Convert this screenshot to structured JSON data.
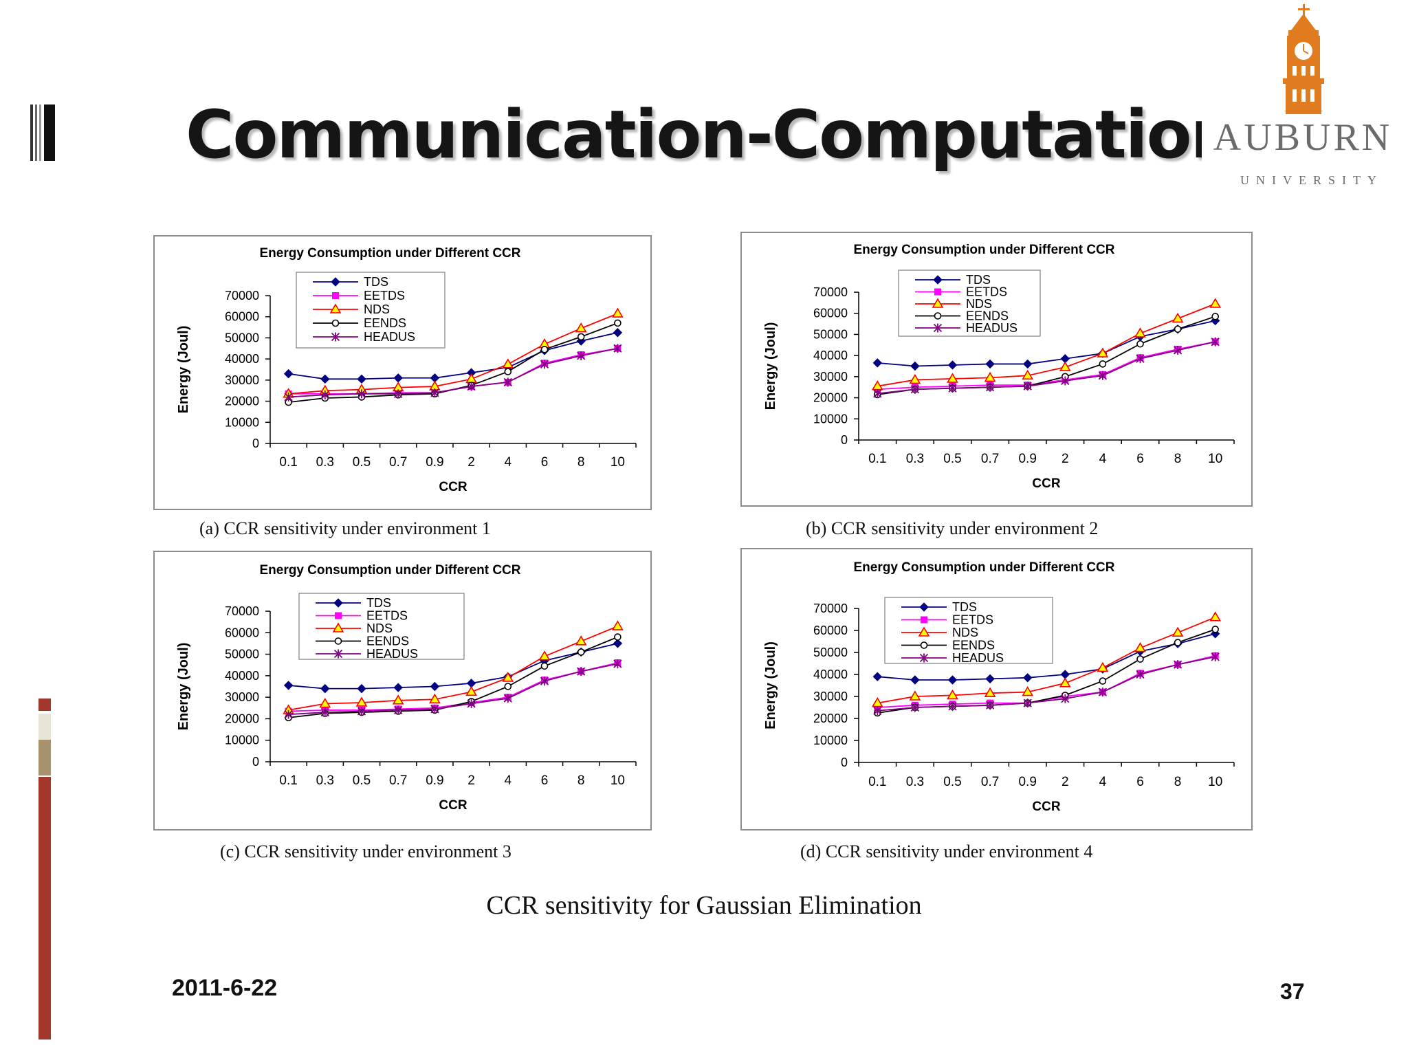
{
  "slide": {
    "title": "Communication-Computation Ratio",
    "logo": {
      "name": "AUBURN",
      "subtitle": "UNIVERSITY",
      "color": "#e07b20"
    },
    "figure_caption": "CCR sensitivity for Gaussian Elimination",
    "date": "2011-6-22",
    "page_number": "37",
    "side_bar_colors": [
      "#a3362a",
      "#e8e4d6",
      "#a8926e",
      "#a3362a"
    ]
  },
  "series_styles": [
    {
      "name": "TDS",
      "color": "#000080",
      "marker": "diamond"
    },
    {
      "name": "EETDS",
      "color": "#ff00ff",
      "marker": "square"
    },
    {
      "name": "NDS",
      "color": "#ff0000",
      "marker": "triangle"
    },
    {
      "name": "EENDS",
      "color": "#000000",
      "marker": "circle"
    },
    {
      "name": "HEADUS",
      "color": "#800080",
      "marker": "star"
    }
  ],
  "chart_data": [
    {
      "type": "line",
      "title": "Energy Consumption under Different CCR",
      "subcaption_label": "(a)",
      "subcaption_text": "CCR sensitivity under environment 1",
      "xlabel": "CCR",
      "ylabel": "Energy (Joul)",
      "categories": [
        "0.1",
        "0.3",
        "0.5",
        "0.7",
        "0.9",
        "2",
        "4",
        "6",
        "8",
        "10"
      ],
      "yticks": [
        "0",
        "10000",
        "20000",
        "30000",
        "40000",
        "50000",
        "60000",
        "70000"
      ],
      "ylim": [
        0,
        70000
      ],
      "legend": "top-left",
      "grid": false,
      "series": [
        {
          "name": "TDS",
          "values": [
            33000,
            30500,
            30500,
            31000,
            31000,
            33500,
            36000,
            44000,
            48500,
            52500
          ]
        },
        {
          "name": "EETDS",
          "values": [
            23500,
            23500,
            23500,
            24000,
            24000,
            27000,
            29000,
            38000,
            42000,
            45000
          ]
        },
        {
          "name": "NDS",
          "values": [
            23500,
            25000,
            25500,
            26500,
            27000,
            30500,
            37500,
            47000,
            54500,
            61500
          ]
        },
        {
          "name": "EENDS",
          "values": [
            19500,
            21500,
            22000,
            23000,
            23500,
            27500,
            34000,
            44500,
            50500,
            57000
          ]
        },
        {
          "name": "HEADUS",
          "values": [
            22000,
            23000,
            23500,
            23500,
            24000,
            27000,
            29000,
            37500,
            41500,
            45000
          ]
        }
      ]
    },
    {
      "type": "line",
      "title": "Energy Consumption under Different CCR",
      "subcaption_label": "(b)",
      "subcaption_text": "CCR sensitivity under environment 2",
      "xlabel": "CCR",
      "ylabel": "Energy (Joul)",
      "categories": [
        "0.1",
        "0.3",
        "0.5",
        "0.7",
        "0.9",
        "2",
        "4",
        "6",
        "8",
        "10"
      ],
      "yticks": [
        "0",
        "10000",
        "20000",
        "30000",
        "40000",
        "50000",
        "60000",
        "70000"
      ],
      "ylim": [
        0,
        70000
      ],
      "legend": "top-left",
      "grid": false,
      "series": [
        {
          "name": "TDS",
          "values": [
            36500,
            35000,
            35500,
            36000,
            36000,
            38500,
            41000,
            49000,
            52500,
            56500
          ]
        },
        {
          "name": "EETDS",
          "values": [
            24000,
            25000,
            25500,
            26000,
            26000,
            28500,
            31000,
            39000,
            43000,
            46500
          ]
        },
        {
          "name": "NDS",
          "values": [
            25500,
            28500,
            29000,
            29500,
            30500,
            34500,
            41000,
            50500,
            57500,
            64500
          ]
        },
        {
          "name": "EENDS",
          "values": [
            21500,
            24000,
            24500,
            25000,
            25500,
            30000,
            36000,
            45500,
            52500,
            58500
          ]
        },
        {
          "name": "HEADUS",
          "values": [
            22000,
            24000,
            24500,
            25000,
            25500,
            28000,
            30500,
            38500,
            42500,
            46500
          ]
        }
      ]
    },
    {
      "type": "line",
      "title": "Energy Consumption under Different CCR",
      "subcaption_label": "(c)",
      "subcaption_text": "CCR sensitivity under environment 3",
      "xlabel": "CCR",
      "ylabel": "Energy (Joul)",
      "categories": [
        "0.1",
        "0.3",
        "0.5",
        "0.7",
        "0.9",
        "2",
        "4",
        "6",
        "8",
        "10"
      ],
      "yticks": [
        "0",
        "10000",
        "20000",
        "30000",
        "40000",
        "50000",
        "60000",
        "70000"
      ],
      "ylim": [
        0,
        70000
      ],
      "legend": "top-left",
      "grid": false,
      "series": [
        {
          "name": "TDS",
          "values": [
            35500,
            34000,
            34000,
            34500,
            35000,
            36500,
            39500,
            47000,
            51000,
            55000
          ]
        },
        {
          "name": "EETDS",
          "values": [
            23500,
            24000,
            24000,
            24500,
            25000,
            27500,
            30000,
            38000,
            42000,
            46000
          ]
        },
        {
          "name": "NDS",
          "values": [
            24000,
            27000,
            27500,
            28500,
            29000,
            32500,
            39000,
            49000,
            56000,
            63000
          ]
        },
        {
          "name": "EENDS",
          "values": [
            20500,
            22500,
            23000,
            23500,
            24000,
            28000,
            35000,
            44500,
            51000,
            58000
          ]
        },
        {
          "name": "HEADUS",
          "values": [
            22000,
            23000,
            23500,
            24000,
            24500,
            27000,
            29500,
            37500,
            42000,
            45500
          ]
        }
      ]
    },
    {
      "type": "line",
      "title": "Energy Consumption under Different CCR",
      "subcaption_label": "(d)",
      "subcaption_text": "CCR sensitivity under environment 4",
      "xlabel": "CCR",
      "ylabel": "Energy (Joul)",
      "categories": [
        "0.1",
        "0.3",
        "0.5",
        "0.7",
        "0.9",
        "2",
        "4",
        "6",
        "8",
        "10"
      ],
      "yticks": [
        "0",
        "10000",
        "20000",
        "30000",
        "40000",
        "50000",
        "60000",
        "70000"
      ],
      "ylim": [
        0,
        70000
      ],
      "legend": "top-left",
      "grid": false,
      "series": [
        {
          "name": "TDS",
          "values": [
            39000,
            37500,
            37500,
            38000,
            38500,
            40000,
            42500,
            50500,
            54000,
            58500
          ]
        },
        {
          "name": "EETDS",
          "values": [
            25000,
            26000,
            26500,
            27000,
            27000,
            30000,
            32000,
            40500,
            44500,
            48500
          ]
        },
        {
          "name": "NDS",
          "values": [
            27000,
            30000,
            30500,
            31500,
            32000,
            36000,
            43000,
            52000,
            59000,
            66000
          ]
        },
        {
          "name": "EENDS",
          "values": [
            22500,
            25000,
            25500,
            26000,
            27000,
            30500,
            37000,
            47000,
            54500,
            60500
          ]
        },
        {
          "name": "HEADUS",
          "values": [
            23500,
            25000,
            25500,
            26000,
            27000,
            29000,
            32000,
            40000,
            44500,
            48000
          ]
        }
      ]
    }
  ]
}
